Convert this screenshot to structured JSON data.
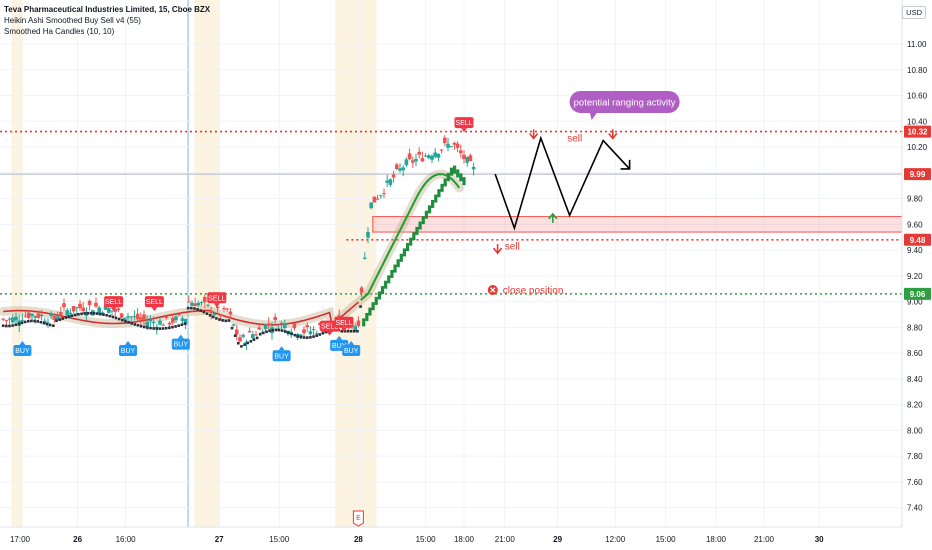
{
  "header": {
    "title": "Teva Pharmaceutical Industries Limited, 15, Cboe BZX",
    "indicator_1": "Heikin Ashi Smoothed Buy Sell v4 (55)",
    "indicator_2": "Smoothed Ha Candles (10, 10)",
    "currency": "USD"
  },
  "chart_data": {
    "type": "candlestick",
    "y_axis": {
      "ticks": [
        "11.00",
        "10.80",
        "10.60",
        "10.40",
        "10.20",
        "10.00",
        "9.80",
        "9.60",
        "9.40",
        "9.20",
        "9.00",
        "8.80",
        "8.60",
        "8.40",
        "8.20",
        "8.00",
        "7.80",
        "7.60",
        "7.40"
      ],
      "range": [
        7.3,
        11.22
      ]
    },
    "x_axis": {
      "ticks": [
        {
          "label": "17:00",
          "t": 0.0,
          "bold": false
        },
        {
          "label": "26",
          "t": 0.24,
          "bold": true
        },
        {
          "label": "16:00",
          "t": 0.44,
          "bold": false
        },
        {
          "label": "27",
          "t": 0.83,
          "bold": true
        },
        {
          "label": "15:00",
          "t": 1.08,
          "bold": false
        },
        {
          "label": "28",
          "t": 1.41,
          "bold": true
        },
        {
          "label": "15:00",
          "t": 1.69,
          "bold": false
        },
        {
          "label": "18:00",
          "t": 1.85,
          "bold": false
        },
        {
          "label": "21:00",
          "t": 2.02,
          "bold": false
        },
        {
          "label": "29",
          "t": 2.24,
          "bold": true
        },
        {
          "label": "12:00",
          "t": 2.48,
          "bold": false
        },
        {
          "label": "15:00",
          "t": 2.69,
          "bold": false
        },
        {
          "label": "18:00",
          "t": 2.9,
          "bold": false
        },
        {
          "label": "21:00",
          "t": 3.1,
          "bold": false
        },
        {
          "label": "30",
          "t": 3.33,
          "bold": true
        }
      ],
      "range": [
        -0.07,
        3.56
      ]
    },
    "price_tags": [
      {
        "value": 10.32,
        "label": "10.32",
        "color": "#e53935",
        "style": "dotted"
      },
      {
        "value": 9.99,
        "label": "9.99",
        "color": "#e53935",
        "style": "solid-gray"
      },
      {
        "value": 9.48,
        "label": "9.48",
        "color": "#e53935",
        "style": "dotted"
      },
      {
        "value": 9.06,
        "label": "9.06",
        "color": "#2e9e3e",
        "style": "dotted"
      }
    ],
    "signals": [
      {
        "label": "BUY",
        "t": 0.01,
        "price": 8.62,
        "type": "buy"
      },
      {
        "label": "SELL",
        "t": 0.39,
        "price": 9.0,
        "type": "sell"
      },
      {
        "label": "BUY",
        "t": 0.45,
        "price": 8.62,
        "type": "buy"
      },
      {
        "label": "SELL",
        "t": 0.56,
        "price": 9.0,
        "type": "sell"
      },
      {
        "label": "BUY",
        "t": 0.67,
        "price": 8.67,
        "type": "buy"
      },
      {
        "label": "SELL",
        "t": 0.82,
        "price": 9.03,
        "type": "sell"
      },
      {
        "label": "BUY",
        "t": 1.09,
        "price": 8.58,
        "type": "buy"
      },
      {
        "label": "SELL",
        "t": 1.29,
        "price": 8.81,
        "type": "sell"
      },
      {
        "label": "SELL",
        "t": 1.35,
        "price": 8.84,
        "type": "sell"
      },
      {
        "label": "BUY",
        "t": 1.33,
        "price": 8.66,
        "type": "buy"
      },
      {
        "label": "BUY",
        "t": 1.38,
        "price": 8.62,
        "type": "buy"
      },
      {
        "label": "SELL",
        "t": 1.85,
        "price": 10.39,
        "type": "sell"
      }
    ],
    "annotations": {
      "pill": "potential ranging activity",
      "sell_upper": "sell",
      "sell_lower": "sell",
      "close_position": "close position",
      "earnings_marker": "E"
    },
    "zone": {
      "from": 9.54,
      "to": 9.66
    },
    "projection": [
      [
        1.98,
        9.99
      ],
      [
        2.06,
        9.57
      ],
      [
        2.17,
        10.27
      ],
      [
        2.29,
        9.67
      ],
      [
        2.43,
        10.25
      ],
      [
        2.54,
        10.03
      ]
    ]
  }
}
